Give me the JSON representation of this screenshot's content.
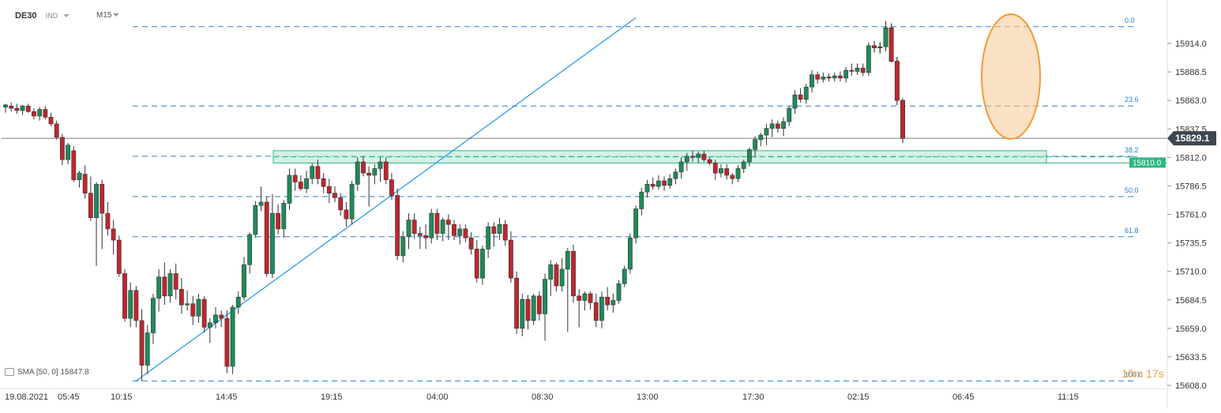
{
  "header": {
    "symbol": "DE30",
    "type": "IND",
    "timeframe": "M15"
  },
  "indicator": {
    "name": "SMA",
    "params": "[50, 0]",
    "value": "15847.8"
  },
  "timer": {
    "minutes": "10m",
    "seconds": "17s"
  },
  "colors": {
    "up": "#1f8a5a",
    "down": "#c0262d",
    "fib_line": "#2f7fd0",
    "trend_line": "#2196f3",
    "zone_fill": "#b7ead5",
    "zone_border": "#2fb783",
    "highlight": "#f59a34",
    "price_tag": "#3d4751",
    "zone_tag": "#2fb783"
  },
  "chart_data": {
    "type": "candlestick",
    "y_ticks": [
      "15914.0",
      "15888.5",
      "15863.0",
      "15837.5",
      "15812.0",
      "15786.5",
      "15761.0",
      "15735.5",
      "15710.0",
      "15684.5",
      "15659.0",
      "15633.5",
      "15608.0"
    ],
    "x_ticks": [
      "19.08.2021",
      "05:45",
      "10:15",
      "14:45",
      "19:15",
      "04:00",
      "08:30",
      "13:00",
      "17:30",
      "02:15",
      "06:45",
      "11:15"
    ],
    "ylim": [
      15601,
      15937
    ],
    "current_price": "15829.1",
    "zone_label": "15810.0",
    "zone_range": [
      15807,
      15818
    ],
    "fibonacci": [
      {
        "label": "0.0",
        "value": 15929
      },
      {
        "label": "23.6",
        "value": 15858
      },
      {
        "label": "38.2",
        "value": 15813
      },
      {
        "label": "50.0",
        "value": 15777
      },
      {
        "label": "61.8",
        "value": 15741
      },
      {
        "label": "100.0",
        "value": 15612
      }
    ],
    "trendline": {
      "from": [
        {
          "index": 23,
          "price": 15612
        },
        {
          "index": 111,
          "price": 15937
        }
      ]
    },
    "candles": [
      [
        15857,
        15860,
        15852,
        15859
      ],
      [
        15858,
        15861,
        15853,
        15856
      ],
      [
        15856,
        15860,
        15851,
        15854
      ],
      [
        15854,
        15859,
        15850,
        15858
      ],
      [
        15858,
        15860,
        15852,
        15853
      ],
      [
        15853,
        15856,
        15846,
        15849
      ],
      [
        15849,
        15857,
        15845,
        15855
      ],
      [
        15855,
        15858,
        15846,
        15848
      ],
      [
        15848,
        15852,
        15840,
        15842
      ],
      [
        15842,
        15845,
        15828,
        15830
      ],
      [
        15830,
        15833,
        15805,
        15810
      ],
      [
        15810,
        15825,
        15806,
        15823
      ],
      [
        15818,
        15822,
        15790,
        15792
      ],
      [
        15792,
        15800,
        15785,
        15798
      ],
      [
        15797,
        15805,
        15775,
        15780
      ],
      [
        15780,
        15795,
        15755,
        15758
      ],
      [
        15758,
        15790,
        15715,
        15788
      ],
      [
        15788,
        15792,
        15730,
        15762
      ],
      [
        15762,
        15772,
        15742,
        15748
      ],
      [
        15748,
        15756,
        15725,
        15738
      ],
      [
        15738,
        15742,
        15705,
        15708
      ],
      [
        15708,
        15712,
        15665,
        15668
      ],
      [
        15668,
        15700,
        15660,
        15693
      ],
      [
        15693,
        15697,
        15660,
        15666
      ],
      [
        15666,
        15676,
        15612,
        15626
      ],
      [
        15626,
        15662,
        15618,
        15655
      ],
      [
        15655,
        15690,
        15645,
        15686
      ],
      [
        15686,
        15712,
        15674,
        15705
      ],
      [
        15705,
        15718,
        15680,
        15688
      ],
      [
        15688,
        15712,
        15682,
        15708
      ],
      [
        15708,
        15717,
        15685,
        15694
      ],
      [
        15694,
        15704,
        15672,
        15680
      ],
      [
        15680,
        15693,
        15675,
        15681
      ],
      [
        15681,
        15688,
        15662,
        15670
      ],
      [
        15670,
        15690,
        15664,
        15685
      ],
      [
        15685,
        15688,
        15655,
        15660
      ],
      [
        15660,
        15668,
        15646,
        15664
      ],
      [
        15664,
        15678,
        15659,
        15671
      ],
      [
        15671,
        15675,
        15660,
        15668
      ],
      [
        15668,
        15675,
        15619,
        15625
      ],
      [
        15625,
        15680,
        15618,
        15678
      ],
      [
        15678,
        15692,
        15672,
        15687
      ],
      [
        15687,
        15723,
        15684,
        15716
      ],
      [
        15716,
        15745,
        15708,
        15743
      ],
      [
        15743,
        15773,
        15740,
        15769
      ],
      [
        15769,
        15786,
        15764,
        15772
      ],
      [
        15772,
        15777,
        15705,
        15708
      ],
      [
        15708,
        15779,
        15704,
        15762
      ],
      [
        15762,
        15770,
        15743,
        15748
      ],
      [
        15748,
        15774,
        15740,
        15771
      ],
      [
        15771,
        15802,
        15765,
        15796
      ],
      [
        15796,
        15802,
        15782,
        15790
      ],
      [
        15790,
        15796,
        15782,
        15784
      ],
      [
        15784,
        15800,
        15780,
        15793
      ],
      [
        15793,
        15807,
        15788,
        15804
      ],
      [
        15804,
        15810,
        15788,
        15793
      ],
      [
        15793,
        15798,
        15780,
        15786
      ],
      [
        15786,
        15793,
        15771,
        15780
      ],
      [
        15780,
        15786,
        15772,
        15776
      ],
      [
        15776,
        15780,
        15760,
        15765
      ],
      [
        15765,
        15772,
        15750,
        15757
      ],
      [
        15757,
        15791,
        15752,
        15788
      ],
      [
        15788,
        15812,
        15782,
        15808
      ],
      [
        15808,
        15813,
        15795,
        15798
      ],
      [
        15798,
        15804,
        15768,
        15796
      ],
      [
        15796,
        15806,
        15788,
        15802
      ],
      [
        15802,
        15812,
        15790,
        15808
      ],
      [
        15808,
        15812,
        15788,
        15792
      ],
      [
        15792,
        15798,
        15774,
        15778
      ],
      [
        15778,
        15784,
        15720,
        15724
      ],
      [
        15724,
        15746,
        15718,
        15741
      ],
      [
        15741,
        15762,
        15730,
        15756
      ],
      [
        15756,
        15762,
        15739,
        15744
      ],
      [
        15744,
        15750,
        15730,
        15742
      ],
      [
        15742,
        15752,
        15730,
        15740
      ],
      [
        15740,
        15766,
        15735,
        15762
      ],
      [
        15762,
        15766,
        15738,
        15744
      ],
      [
        15744,
        15758,
        15737,
        15756
      ],
      [
        15756,
        15761,
        15738,
        15752
      ],
      [
        15752,
        15756,
        15738,
        15742
      ],
      [
        15742,
        15752,
        15734,
        15748
      ],
      [
        15748,
        15752,
        15736,
        15740
      ],
      [
        15740,
        15745,
        15725,
        15730
      ],
      [
        15730,
        15738,
        15700,
        15704
      ],
      [
        15704,
        15733,
        15698,
        15730
      ],
      [
        15730,
        15754,
        15722,
        15750
      ],
      [
        15750,
        15754,
        15732,
        15744
      ],
      [
        15744,
        15758,
        15738,
        15752
      ],
      [
        15752,
        15756,
        15733,
        15738
      ],
      [
        15738,
        15746,
        15700,
        15704
      ],
      [
        15704,
        15710,
        15654,
        15659
      ],
      [
        15659,
        15690,
        15652,
        15685
      ],
      [
        15685,
        15689,
        15658,
        15666
      ],
      [
        15666,
        15690,
        15662,
        15688
      ],
      [
        15688,
        15692,
        15666,
        15672
      ],
      [
        15672,
        15708,
        15648,
        15703
      ],
      [
        15703,
        15720,
        15688,
        15716
      ],
      [
        15716,
        15718,
        15692,
        15697
      ],
      [
        15697,
        15722,
        15692,
        15712
      ],
      [
        15712,
        15731,
        15656,
        15728
      ],
      [
        15728,
        15734,
        15682,
        15688
      ],
      [
        15688,
        15694,
        15660,
        15684
      ],
      [
        15684,
        15692,
        15675,
        15690
      ],
      [
        15690,
        15692,
        15676,
        15682
      ],
      [
        15682,
        15690,
        15660,
        15666
      ],
      [
        15666,
        15692,
        15659,
        15687
      ],
      [
        15687,
        15696,
        15675,
        15680
      ],
      [
        15680,
        15690,
        15673,
        15684
      ],
      [
        15684,
        15702,
        15681,
        15699
      ],
      [
        15699,
        15715,
        15696,
        15712
      ],
      [
        15712,
        15744,
        15708,
        15740
      ],
      [
        15740,
        15769,
        15735,
        15766
      ],
      [
        15766,
        15785,
        15760,
        15781
      ],
      [
        15781,
        15792,
        15776,
        15788
      ],
      [
        15788,
        15794,
        15783,
        15786
      ],
      [
        15786,
        15796,
        15783,
        15791
      ],
      [
        15791,
        15795,
        15782,
        15787
      ],
      [
        15787,
        15797,
        15784,
        15793
      ],
      [
        15793,
        15802,
        15788,
        15799
      ],
      [
        15799,
        15812,
        15793,
        15808
      ],
      [
        15808,
        15816,
        15800,
        15813
      ],
      [
        15813,
        15818,
        15808,
        15812
      ],
      [
        15812,
        15817,
        15807,
        15815
      ],
      [
        15815,
        15818,
        15808,
        15810
      ],
      [
        15810,
        15812,
        15805,
        15807
      ],
      [
        15807,
        15810,
        15792,
        15798
      ],
      [
        15798,
        15806,
        15794,
        15802
      ],
      [
        15802,
        15806,
        15792,
        15796
      ],
      [
        15796,
        15798,
        15788,
        15793
      ],
      [
        15793,
        15805,
        15790,
        15802
      ],
      [
        15802,
        15810,
        15798,
        15808
      ],
      [
        15808,
        15821,
        15804,
        15819
      ],
      [
        15819,
        15831,
        15812,
        15828
      ],
      [
        15828,
        15834,
        15822,
        15832
      ],
      [
        15832,
        15842,
        15823,
        15838
      ],
      [
        15838,
        15846,
        15830,
        15842
      ],
      [
        15842,
        15845,
        15834,
        15838
      ],
      [
        15838,
        15848,
        15831,
        15844
      ],
      [
        15844,
        15858,
        15840,
        15856
      ],
      [
        15856,
        15872,
        15851,
        15868
      ],
      [
        15868,
        15874,
        15861,
        15864
      ],
      [
        15864,
        15878,
        15860,
        15875
      ],
      [
        15875,
        15890,
        15870,
        15886
      ],
      [
        15886,
        15889,
        15878,
        15882
      ],
      [
        15882,
        15888,
        15879,
        15884
      ],
      [
        15884,
        15887,
        15880,
        15883
      ],
      [
        15883,
        15888,
        15880,
        15885
      ],
      [
        15885,
        15889,
        15880,
        15883
      ],
      [
        15883,
        15893,
        15879,
        15890
      ],
      [
        15890,
        15896,
        15885,
        15889
      ],
      [
        15889,
        15896,
        15886,
        15892
      ],
      [
        15892,
        15896,
        15885,
        15888
      ],
      [
        15888,
        15915,
        15885,
        15912
      ],
      [
        15912,
        15916,
        15906,
        15910
      ],
      [
        15910,
        15915,
        15905,
        15911
      ],
      [
        15911,
        15934,
        15907,
        15928
      ],
      [
        15928,
        15932,
        15897,
        15898
      ],
      [
        15898,
        15902,
        15859,
        15863
      ],
      [
        15863,
        15865,
        15825,
        15829
      ]
    ]
  }
}
